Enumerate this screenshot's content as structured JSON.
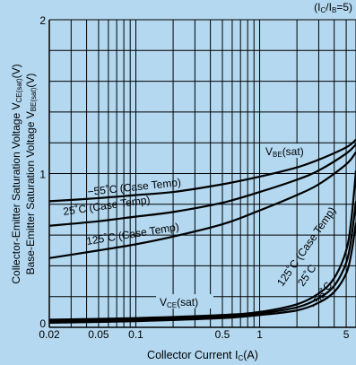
{
  "chart_data": {
    "type": "line",
    "title": "(IC/IB=5)",
    "xlabel": "Collector Current IC(A)",
    "ylabel_lines": [
      "Collector-Emitter Saturation Voltage VCE(sat)(V)",
      "Base-Emitter Saturation Voltage VBE(sat)(V)"
    ],
    "xscale": "log",
    "xlim": [
      0.02,
      6
    ],
    "ylim": [
      0,
      2
    ],
    "x_ticks": [
      {
        "value": 0.02,
        "label": "0.02"
      },
      {
        "value": 0.05,
        "label": "0.05"
      },
      {
        "value": 0.1,
        "label": "0.1"
      },
      {
        "value": 0.5,
        "label": "0.5"
      },
      {
        "value": 1,
        "label": "1"
      },
      {
        "value": 5,
        "label": "5"
      }
    ],
    "y_ticks": [
      {
        "value": 0,
        "label": "0"
      },
      {
        "value": 1,
        "label": "1"
      },
      {
        "value": 2,
        "label": "2"
      }
    ],
    "grid": true,
    "series": [
      {
        "name": "−55˚C (Case Temp)",
        "group": "VBE(sat)",
        "x": [
          0.02,
          0.05,
          0.1,
          0.2,
          0.5,
          1,
          2,
          3,
          5,
          6
        ],
        "y": [
          0.82,
          0.84,
          0.86,
          0.88,
          0.93,
          0.98,
          1.04,
          1.09,
          1.17,
          1.22
        ]
      },
      {
        "name": "25˚C (Case Temp)",
        "group": "VBE(sat)",
        "x": [
          0.02,
          0.05,
          0.1,
          0.2,
          0.5,
          1,
          2,
          3,
          5,
          6
        ],
        "y": [
          0.66,
          0.69,
          0.72,
          0.75,
          0.81,
          0.88,
          0.96,
          1.02,
          1.13,
          1.19
        ]
      },
      {
        "name": "125˚C (Case Temp)",
        "group": "VBE(sat)",
        "x": [
          0.02,
          0.05,
          0.1,
          0.2,
          0.5,
          1,
          2,
          3,
          5,
          6
        ],
        "y": [
          0.45,
          0.5,
          0.54,
          0.59,
          0.67,
          0.76,
          0.86,
          0.93,
          1.06,
          1.14
        ]
      },
      {
        "name": "125˚C (Case Temp)",
        "group": "VCE(sat)",
        "x": [
          0.02,
          0.1,
          0.5,
          1,
          2,
          3,
          4,
          5,
          5.5,
          6
        ],
        "y": [
          0.05,
          0.06,
          0.08,
          0.1,
          0.15,
          0.22,
          0.32,
          0.5,
          0.7,
          1.02
        ]
      },
      {
        "name": "25˚C",
        "group": "VCE(sat)",
        "x": [
          0.02,
          0.1,
          0.5,
          1,
          2,
          3,
          4,
          5,
          5.5,
          6
        ],
        "y": [
          0.04,
          0.05,
          0.07,
          0.09,
          0.13,
          0.19,
          0.27,
          0.42,
          0.58,
          0.82
        ]
      },
      {
        "name": "−55˚C",
        "group": "VCE(sat)",
        "x": [
          0.02,
          0.1,
          0.5,
          1,
          2,
          3,
          4,
          5,
          5.5,
          6
        ],
        "y": [
          0.03,
          0.04,
          0.06,
          0.08,
          0.11,
          0.16,
          0.23,
          0.35,
          0.48,
          0.68
        ]
      }
    ],
    "annotations": [
      {
        "id": "vbe",
        "text": "VBE(sat)"
      },
      {
        "id": "vce",
        "text": "VCE(sat)"
      },
      {
        "id": "m55",
        "text": "−55˚C (Case Temp)"
      },
      {
        "id": "p25",
        "text": "25˚C (Case Temp)"
      },
      {
        "id": "p125",
        "text": "125˚C (Case Temp)"
      },
      {
        "id": "c125",
        "text": "125˚C (Case Temp)"
      },
      {
        "id": "c25",
        "text": "25˚C"
      },
      {
        "id": "cm55",
        "text": "−55˚C"
      }
    ]
  }
}
